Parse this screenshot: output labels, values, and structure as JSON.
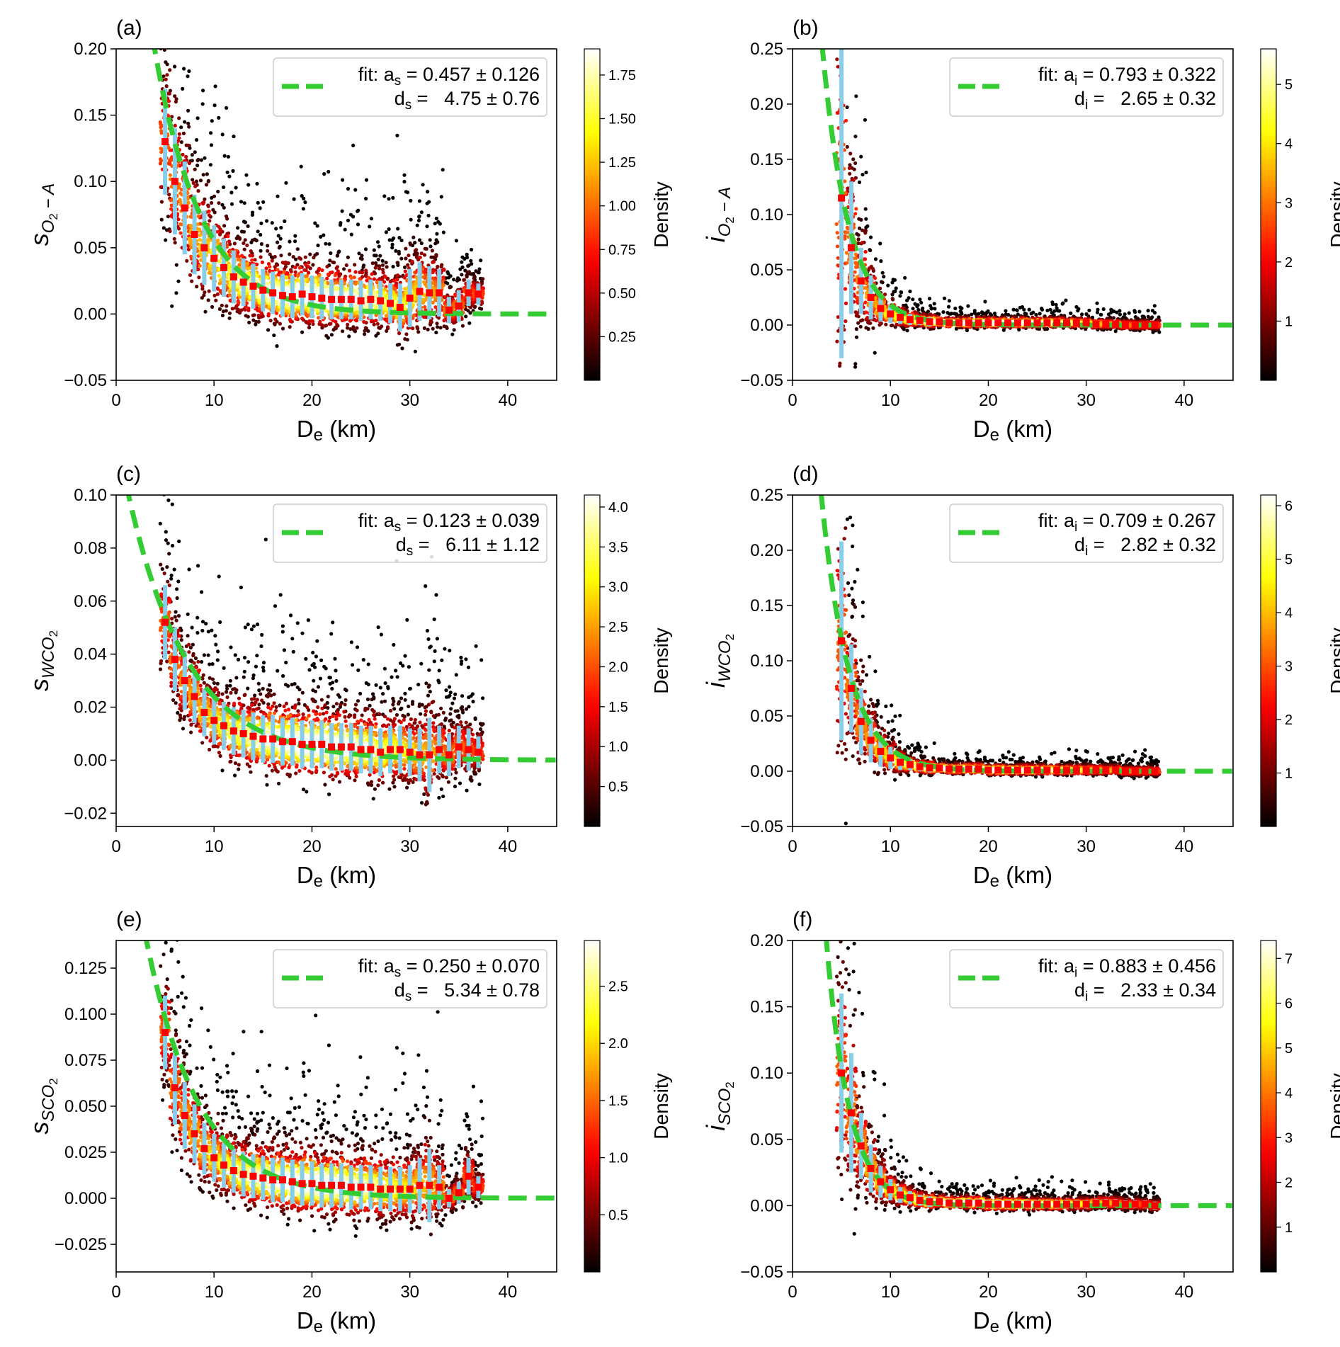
{
  "colors": {
    "fit": "#33cc33",
    "box": "#87ceeb",
    "median": "#ff0000",
    "colormap": "hot"
  },
  "chart_data": [
    {
      "panel_label": "(a)",
      "type": "scatter",
      "xlabel": {
        "main": "D",
        "sub": "e",
        "rest": " (km)"
      },
      "ylabel": {
        "letter": "s",
        "sub_pre": "O",
        "sub_num": "2",
        "sub_post": " − A"
      },
      "xlim": [
        0,
        45
      ],
      "ylim": [
        -0.05,
        0.2
      ],
      "xticks": [
        "0",
        "10",
        "20",
        "30",
        "40"
      ],
      "yticks": [
        "−0.05",
        "0.00",
        "0.05",
        "0.10",
        "0.15",
        "0.20"
      ],
      "ytick_values": [
        -0.05,
        0,
        0.05,
        0.1,
        0.15,
        0.2
      ],
      "colorbar": {
        "label": "Density",
        "max": 1.9,
        "ticks": [
          "0.25",
          "0.50",
          "0.75",
          "1.00",
          "1.25",
          "1.50",
          "1.75"
        ],
        "tick_values": [
          0.25,
          0.5,
          0.75,
          1.0,
          1.25,
          1.5,
          1.75
        ]
      },
      "legend": {
        "prefix": "fit: ",
        "a_sym": "a",
        "d_sym": "d",
        "sub": "s",
        "a_value": " = 0.457 ± 0.126",
        "d_value": " =   4.75 ± 0.76",
        "placement": "top-right"
      },
      "fit": {
        "a": 0.457,
        "d": 4.75,
        "model": "a*exp(-x/d)"
      },
      "bins_x": [
        5,
        6,
        7,
        8,
        9,
        10,
        11,
        12,
        13,
        14,
        15,
        16,
        17,
        18,
        19,
        20,
        21,
        22,
        23,
        24,
        25,
        26,
        27,
        28,
        29,
        30,
        31,
        32,
        33,
        34,
        35,
        36,
        37
      ],
      "median": [
        0.13,
        0.1,
        0.08,
        0.06,
        0.05,
        0.042,
        0.035,
        0.028,
        0.024,
        0.021,
        0.018,
        0.016,
        0.014,
        0.013,
        0.015,
        0.013,
        0.012,
        0.011,
        0.011,
        0.011,
        0.01,
        0.011,
        0.01,
        0.008,
        0.005,
        0.012,
        0.017,
        0.016,
        0.016,
        0.003,
        0.006,
        0.016,
        0.015
      ],
      "half_range": [
        0.04,
        0.04,
        0.035,
        0.03,
        0.028,
        0.025,
        0.022,
        0.02,
        0.018,
        0.017,
        0.016,
        0.016,
        0.016,
        0.016,
        0.016,
        0.016,
        0.016,
        0.015,
        0.015,
        0.015,
        0.015,
        0.015,
        0.015,
        0.015,
        0.018,
        0.022,
        0.022,
        0.02,
        0.018,
        0.01,
        0.012,
        0.01,
        0.008
      ]
    },
    {
      "panel_label": "(b)",
      "type": "scatter",
      "xlabel": {
        "main": "D",
        "sub": "e",
        "rest": " (km)"
      },
      "ylabel": {
        "letter": "i",
        "sub_pre": "O",
        "sub_num": "2",
        "sub_post": " − A"
      },
      "xlim": [
        0,
        45
      ],
      "ylim": [
        -0.05,
        0.25
      ],
      "xticks": [
        "0",
        "10",
        "20",
        "30",
        "40"
      ],
      "yticks": [
        "−0.05",
        "0.00",
        "0.05",
        "0.10",
        "0.15",
        "0.20",
        "0.25"
      ],
      "ytick_values": [
        -0.05,
        0,
        0.05,
        0.1,
        0.15,
        0.2,
        0.25
      ],
      "colorbar": {
        "label": "Density",
        "max": 5.6,
        "ticks": [
          "1",
          "2",
          "3",
          "4",
          "5"
        ],
        "tick_values": [
          1,
          2,
          3,
          4,
          5
        ]
      },
      "legend": {
        "prefix": "fit: ",
        "a_sym": "a",
        "d_sym": "d",
        "sub": "i",
        "a_value": " = 0.793 ± 0.322",
        "d_value": " =   2.65 ± 0.32",
        "placement": "top-right"
      },
      "fit": {
        "a": 0.793,
        "d": 2.65,
        "model": "a*exp(-x/d)"
      },
      "bins_x": [
        5,
        6,
        7,
        8,
        9,
        10,
        11,
        12,
        13,
        14,
        15,
        16,
        17,
        18,
        19,
        20,
        21,
        22,
        23,
        24,
        25,
        26,
        27,
        28,
        29,
        30,
        31,
        32,
        33,
        34,
        35,
        36,
        37
      ],
      "median": [
        0.115,
        0.07,
        0.04,
        0.025,
        0.015,
        0.01,
        0.007,
        0.005,
        0.004,
        0.003,
        0.003,
        0.002,
        0.002,
        0.002,
        0.002,
        0.002,
        0.002,
        0.002,
        0.002,
        0.002,
        0.002,
        0.002,
        0.002,
        0.002,
        0.002,
        0.002,
        0.001,
        0.001,
        0.001,
        0,
        0,
        0,
        0
      ],
      "half_range": [
        0.145,
        0.06,
        0.03,
        0.02,
        0.012,
        0.008,
        0.006,
        0.005,
        0.004,
        0.004,
        0.003,
        0.003,
        0.003,
        0.003,
        0.003,
        0.003,
        0.003,
        0.003,
        0.003,
        0.003,
        0.003,
        0.003,
        0.003,
        0.003,
        0.003,
        0.003,
        0.003,
        0.003,
        0.003,
        0.003,
        0.003,
        0.003,
        0.003
      ]
    },
    {
      "panel_label": "(c)",
      "type": "scatter",
      "xlabel": {
        "main": "D",
        "sub": "e",
        "rest": " (km)"
      },
      "ylabel": {
        "letter": "s",
        "sub_pre": "WCO",
        "sub_num": "2",
        "sub_post": ""
      },
      "xlim": [
        0,
        45
      ],
      "ylim": [
        -0.025,
        0.1
      ],
      "xticks": [
        "0",
        "10",
        "20",
        "30",
        "40"
      ],
      "yticks": [
        "−0.02",
        "0.00",
        "0.02",
        "0.04",
        "0.06",
        "0.08",
        "0.10"
      ],
      "ytick_values": [
        -0.02,
        0,
        0.02,
        0.04,
        0.06,
        0.08,
        0.1
      ],
      "colorbar": {
        "label": "Density",
        "max": 4.15,
        "ticks": [
          "0.5",
          "1.0",
          "1.5",
          "2.0",
          "2.5",
          "3.0",
          "3.5",
          "4.0"
        ],
        "tick_values": [
          0.5,
          1.0,
          1.5,
          2.0,
          2.5,
          3.0,
          3.5,
          4.0
        ]
      },
      "legend": {
        "prefix": "fit: ",
        "a_sym": "a",
        "d_sym": "d",
        "sub": "s",
        "a_value": " = 0.123 ± 0.039",
        "d_value": " =   6.11 ± 1.12",
        "placement": "top-right"
      },
      "fit": {
        "a": 0.123,
        "d": 6.11,
        "model": "a*exp(-x/d)"
      },
      "bins_x": [
        5,
        6,
        7,
        8,
        9,
        10,
        11,
        12,
        13,
        14,
        15,
        16,
        17,
        18,
        19,
        20,
        21,
        22,
        23,
        24,
        25,
        26,
        27,
        28,
        29,
        30,
        31,
        32,
        33,
        34,
        35,
        36,
        37
      ],
      "median": [
        0.052,
        0.038,
        0.03,
        0.024,
        0.018,
        0.015,
        0.013,
        0.011,
        0.01,
        0.009,
        0.008,
        0.008,
        0.007,
        0.007,
        0.006,
        0.006,
        0.006,
        0.005,
        0.005,
        0.005,
        0.004,
        0.004,
        0.003,
        0.004,
        0.004,
        0.003,
        0.002,
        0.002,
        0.004,
        0.002,
        0.005,
        0.004,
        0.003
      ],
      "half_range": [
        0.014,
        0.012,
        0.011,
        0.01,
        0.009,
        0.009,
        0.009,
        0.009,
        0.009,
        0.009,
        0.009,
        0.009,
        0.009,
        0.009,
        0.009,
        0.009,
        0.009,
        0.009,
        0.009,
        0.009,
        0.009,
        0.009,
        0.009,
        0.009,
        0.009,
        0.009,
        0.01,
        0.014,
        0.009,
        0.008,
        0.008,
        0.008,
        0.006
      ]
    },
    {
      "panel_label": "(d)",
      "type": "scatter",
      "xlabel": {
        "main": "D",
        "sub": "e",
        "rest": " (km)"
      },
      "ylabel": {
        "letter": "i",
        "sub_pre": "WCO",
        "sub_num": "2",
        "sub_post": ""
      },
      "xlim": [
        0,
        45
      ],
      "ylim": [
        -0.05,
        0.25
      ],
      "xticks": [
        "0",
        "10",
        "20",
        "30",
        "40"
      ],
      "yticks": [
        "−0.05",
        "0.00",
        "0.05",
        "0.10",
        "0.15",
        "0.20",
        "0.25"
      ],
      "ytick_values": [
        -0.05,
        0,
        0.05,
        0.1,
        0.15,
        0.2,
        0.25
      ],
      "colorbar": {
        "label": "Density",
        "max": 6.2,
        "ticks": [
          "1",
          "2",
          "3",
          "4",
          "5",
          "6"
        ],
        "tick_values": [
          1,
          2,
          3,
          4,
          5,
          6
        ]
      },
      "legend": {
        "prefix": "fit: ",
        "a_sym": "a",
        "d_sym": "d",
        "sub": "i",
        "a_value": " = 0.709 ± 0.267",
        "d_value": " =   2.82 ± 0.32",
        "placement": "top-right"
      },
      "fit": {
        "a": 0.709,
        "d": 2.82,
        "model": "a*exp(-x/d)"
      },
      "bins_x": [
        5,
        6,
        7,
        8,
        9,
        10,
        11,
        12,
        13,
        14,
        15,
        16,
        17,
        18,
        19,
        20,
        21,
        22,
        23,
        24,
        25,
        26,
        27,
        28,
        29,
        30,
        31,
        32,
        33,
        34,
        35,
        36,
        37
      ],
      "median": [
        0.118,
        0.075,
        0.045,
        0.028,
        0.018,
        0.012,
        0.008,
        0.006,
        0.004,
        0.003,
        0.003,
        0.002,
        0.002,
        0.002,
        0.002,
        0.001,
        0.001,
        0.001,
        0.001,
        0.001,
        0.001,
        0.001,
        0.001,
        0.001,
        0.001,
        0.001,
        0.001,
        0.001,
        0.001,
        0,
        0,
        0,
        0
      ],
      "half_range": [
        0.09,
        0.04,
        0.03,
        0.02,
        0.014,
        0.01,
        0.007,
        0.005,
        0.004,
        0.004,
        0.003,
        0.003,
        0.003,
        0.003,
        0.003,
        0.003,
        0.003,
        0.003,
        0.003,
        0.003,
        0.003,
        0.003,
        0.003,
        0.003,
        0.003,
        0.003,
        0.003,
        0.003,
        0.003,
        0.003,
        0.003,
        0.003,
        0.003
      ]
    },
    {
      "panel_label": "(e)",
      "type": "scatter",
      "xlabel": {
        "main": "D",
        "sub": "e",
        "rest": " (km)"
      },
      "ylabel": {
        "letter": "s",
        "sub_pre": "SCO",
        "sub_num": "2",
        "sub_post": ""
      },
      "xlim": [
        0,
        45
      ],
      "ylim": [
        -0.04,
        0.14
      ],
      "xticks": [
        "0",
        "10",
        "20",
        "30",
        "40"
      ],
      "yticks": [
        "−0.025",
        "0.000",
        "0.025",
        "0.050",
        "0.075",
        "0.100",
        "0.125"
      ],
      "ytick_values": [
        -0.025,
        0,
        0.025,
        0.05,
        0.075,
        0.1,
        0.125
      ],
      "colorbar": {
        "label": "Density",
        "max": 2.9,
        "ticks": [
          "0.5",
          "1.0",
          "1.5",
          "2.0",
          "2.5"
        ],
        "tick_values": [
          0.5,
          1.0,
          1.5,
          2.0,
          2.5
        ]
      },
      "legend": {
        "prefix": "fit: ",
        "a_sym": "a",
        "d_sym": "d",
        "sub": "s",
        "a_value": " = 0.250 ± 0.070",
        "d_value": " =   5.34 ± 0.78",
        "placement": "top-right"
      },
      "fit": {
        "a": 0.25,
        "d": 5.34,
        "model": "a*exp(-x/d)"
      },
      "bins_x": [
        5,
        6,
        7,
        8,
        9,
        10,
        11,
        12,
        13,
        14,
        15,
        16,
        17,
        18,
        19,
        20,
        21,
        22,
        23,
        24,
        25,
        26,
        27,
        28,
        29,
        30,
        31,
        32,
        33,
        34,
        35,
        36,
        37
      ],
      "median": [
        0.09,
        0.06,
        0.045,
        0.035,
        0.027,
        0.022,
        0.018,
        0.015,
        0.013,
        0.012,
        0.011,
        0.01,
        0.01,
        0.009,
        0.008,
        0.008,
        0.007,
        0.007,
        0.007,
        0.006,
        0.006,
        0.006,
        0.005,
        0.005,
        0.005,
        0.005,
        0.007,
        0.007,
        0.006,
        0,
        0.003,
        0.012,
        0.006
      ],
      "half_range": [
        0.02,
        0.02,
        0.018,
        0.016,
        0.014,
        0.013,
        0.012,
        0.012,
        0.012,
        0.012,
        0.012,
        0.012,
        0.012,
        0.012,
        0.012,
        0.012,
        0.012,
        0.012,
        0.012,
        0.012,
        0.012,
        0.012,
        0.012,
        0.012,
        0.012,
        0.013,
        0.015,
        0.02,
        0.012,
        0.005,
        0.006,
        0.01,
        0.006
      ]
    },
    {
      "panel_label": "(f)",
      "type": "scatter",
      "xlabel": {
        "main": "D",
        "sub": "e",
        "rest": " (km)"
      },
      "ylabel": {
        "letter": "i",
        "sub_pre": "SCO",
        "sub_num": "2",
        "sub_post": ""
      },
      "xlim": [
        0,
        45
      ],
      "ylim": [
        -0.05,
        0.2
      ],
      "xticks": [
        "0",
        "10",
        "20",
        "30",
        "40"
      ],
      "yticks": [
        "−0.05",
        "0.00",
        "0.05",
        "0.10",
        "0.15",
        "0.20"
      ],
      "ytick_values": [
        -0.05,
        0,
        0.05,
        0.1,
        0.15,
        0.2
      ],
      "colorbar": {
        "label": "Density",
        "max": 7.4,
        "ticks": [
          "1",
          "2",
          "3",
          "4",
          "5",
          "6",
          "7"
        ],
        "tick_values": [
          1,
          2,
          3,
          4,
          5,
          6,
          7
        ]
      },
      "legend": {
        "prefix": "fit: ",
        "a_sym": "a",
        "d_sym": "d",
        "sub": "i",
        "a_value": " = 0.883 ± 0.456",
        "d_value": " =   2.33 ± 0.34",
        "placement": "top-right"
      },
      "fit": {
        "a": 0.883,
        "d": 2.33,
        "model": "a*exp(-x/d)"
      },
      "bins_x": [
        5,
        6,
        7,
        8,
        9,
        10,
        11,
        12,
        13,
        14,
        15,
        16,
        17,
        18,
        19,
        20,
        21,
        22,
        23,
        24,
        25,
        26,
        27,
        28,
        29,
        30,
        31,
        32,
        33,
        34,
        35,
        36,
        37
      ],
      "median": [
        0.1,
        0.07,
        0.045,
        0.028,
        0.018,
        0.012,
        0.008,
        0.006,
        0.004,
        0.003,
        0.003,
        0.002,
        0.002,
        0.002,
        0.002,
        0.001,
        0.001,
        0.001,
        0.001,
        0.001,
        0.001,
        0.001,
        0.001,
        0.001,
        0.001,
        0.001,
        0.002,
        0.002,
        0.002,
        0.001,
        0.001,
        0.001,
        0
      ],
      "half_range": [
        0.06,
        0.045,
        0.025,
        0.018,
        0.012,
        0.008,
        0.006,
        0.005,
        0.004,
        0.004,
        0.003,
        0.003,
        0.003,
        0.003,
        0.003,
        0.003,
        0.003,
        0.003,
        0.003,
        0.003,
        0.003,
        0.003,
        0.003,
        0.003,
        0.003,
        0.003,
        0.003,
        0.003,
        0.003,
        0.003,
        0.003,
        0.003,
        0.003
      ]
    }
  ]
}
